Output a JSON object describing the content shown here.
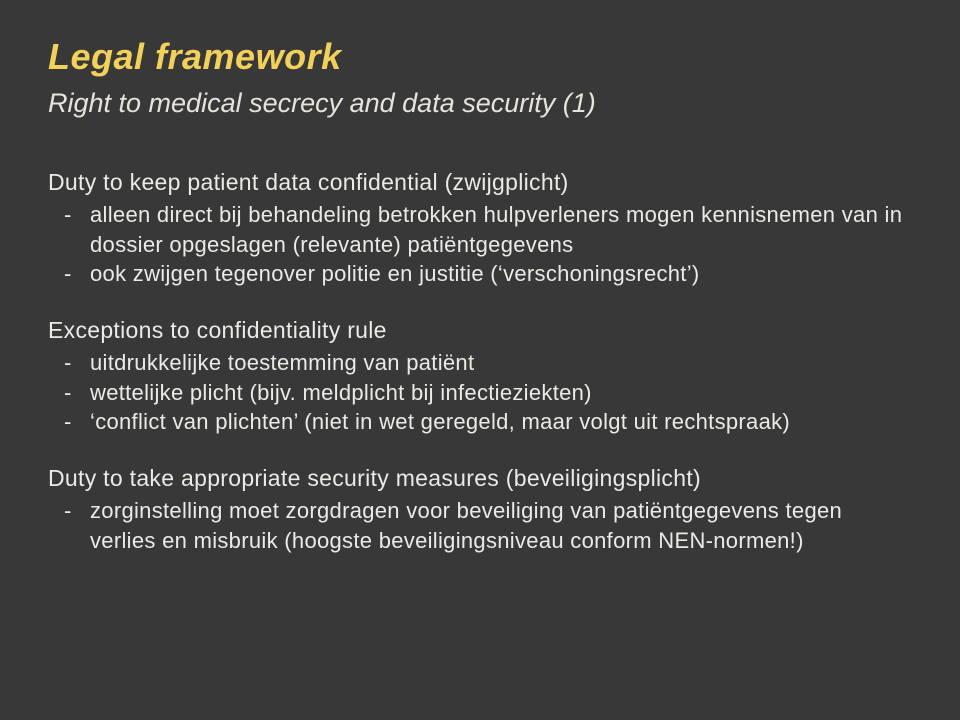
{
  "colors": {
    "background": "#383838",
    "title": "#f2d15b",
    "body": "#eceae5"
  },
  "typography": {
    "title_fontsize": 36,
    "subtitle_fontsize": 27,
    "heading_fontsize": 23,
    "body_fontsize": 22,
    "font_family": "Arial"
  },
  "title": "Legal framework",
  "subtitle": "Right to medical secrecy and data security (1)",
  "section1": {
    "heading": "Duty to keep patient data confidential (zwijgplicht)",
    "bullets": [
      "alleen direct bij behandeling betrokken hulpverleners mogen kennisnemen van in dossier opgeslagen (relevante) patiëntgegevens",
      "ook zwijgen tegenover politie en justitie (‘verschoningsrecht’)"
    ]
  },
  "section2": {
    "heading": "Exceptions to confidentiality rule",
    "bullets": [
      "uitdrukkelijke toestemming van patiënt",
      "wettelijke plicht (bijv. meldplicht bij infectieziekten)",
      "‘conflict van plichten’ (niet in wet geregeld, maar volgt uit rechtspraak)"
    ]
  },
  "section3": {
    "heading": "Duty to take appropriate security measures (beveiligingsplicht)",
    "bullets": [
      "zorginstelling moet zorgdragen voor beveiliging van patiëntgegevens tegen verlies en misbruik (hoogste beveiligingsniveau conform NEN-normen!)"
    ]
  }
}
